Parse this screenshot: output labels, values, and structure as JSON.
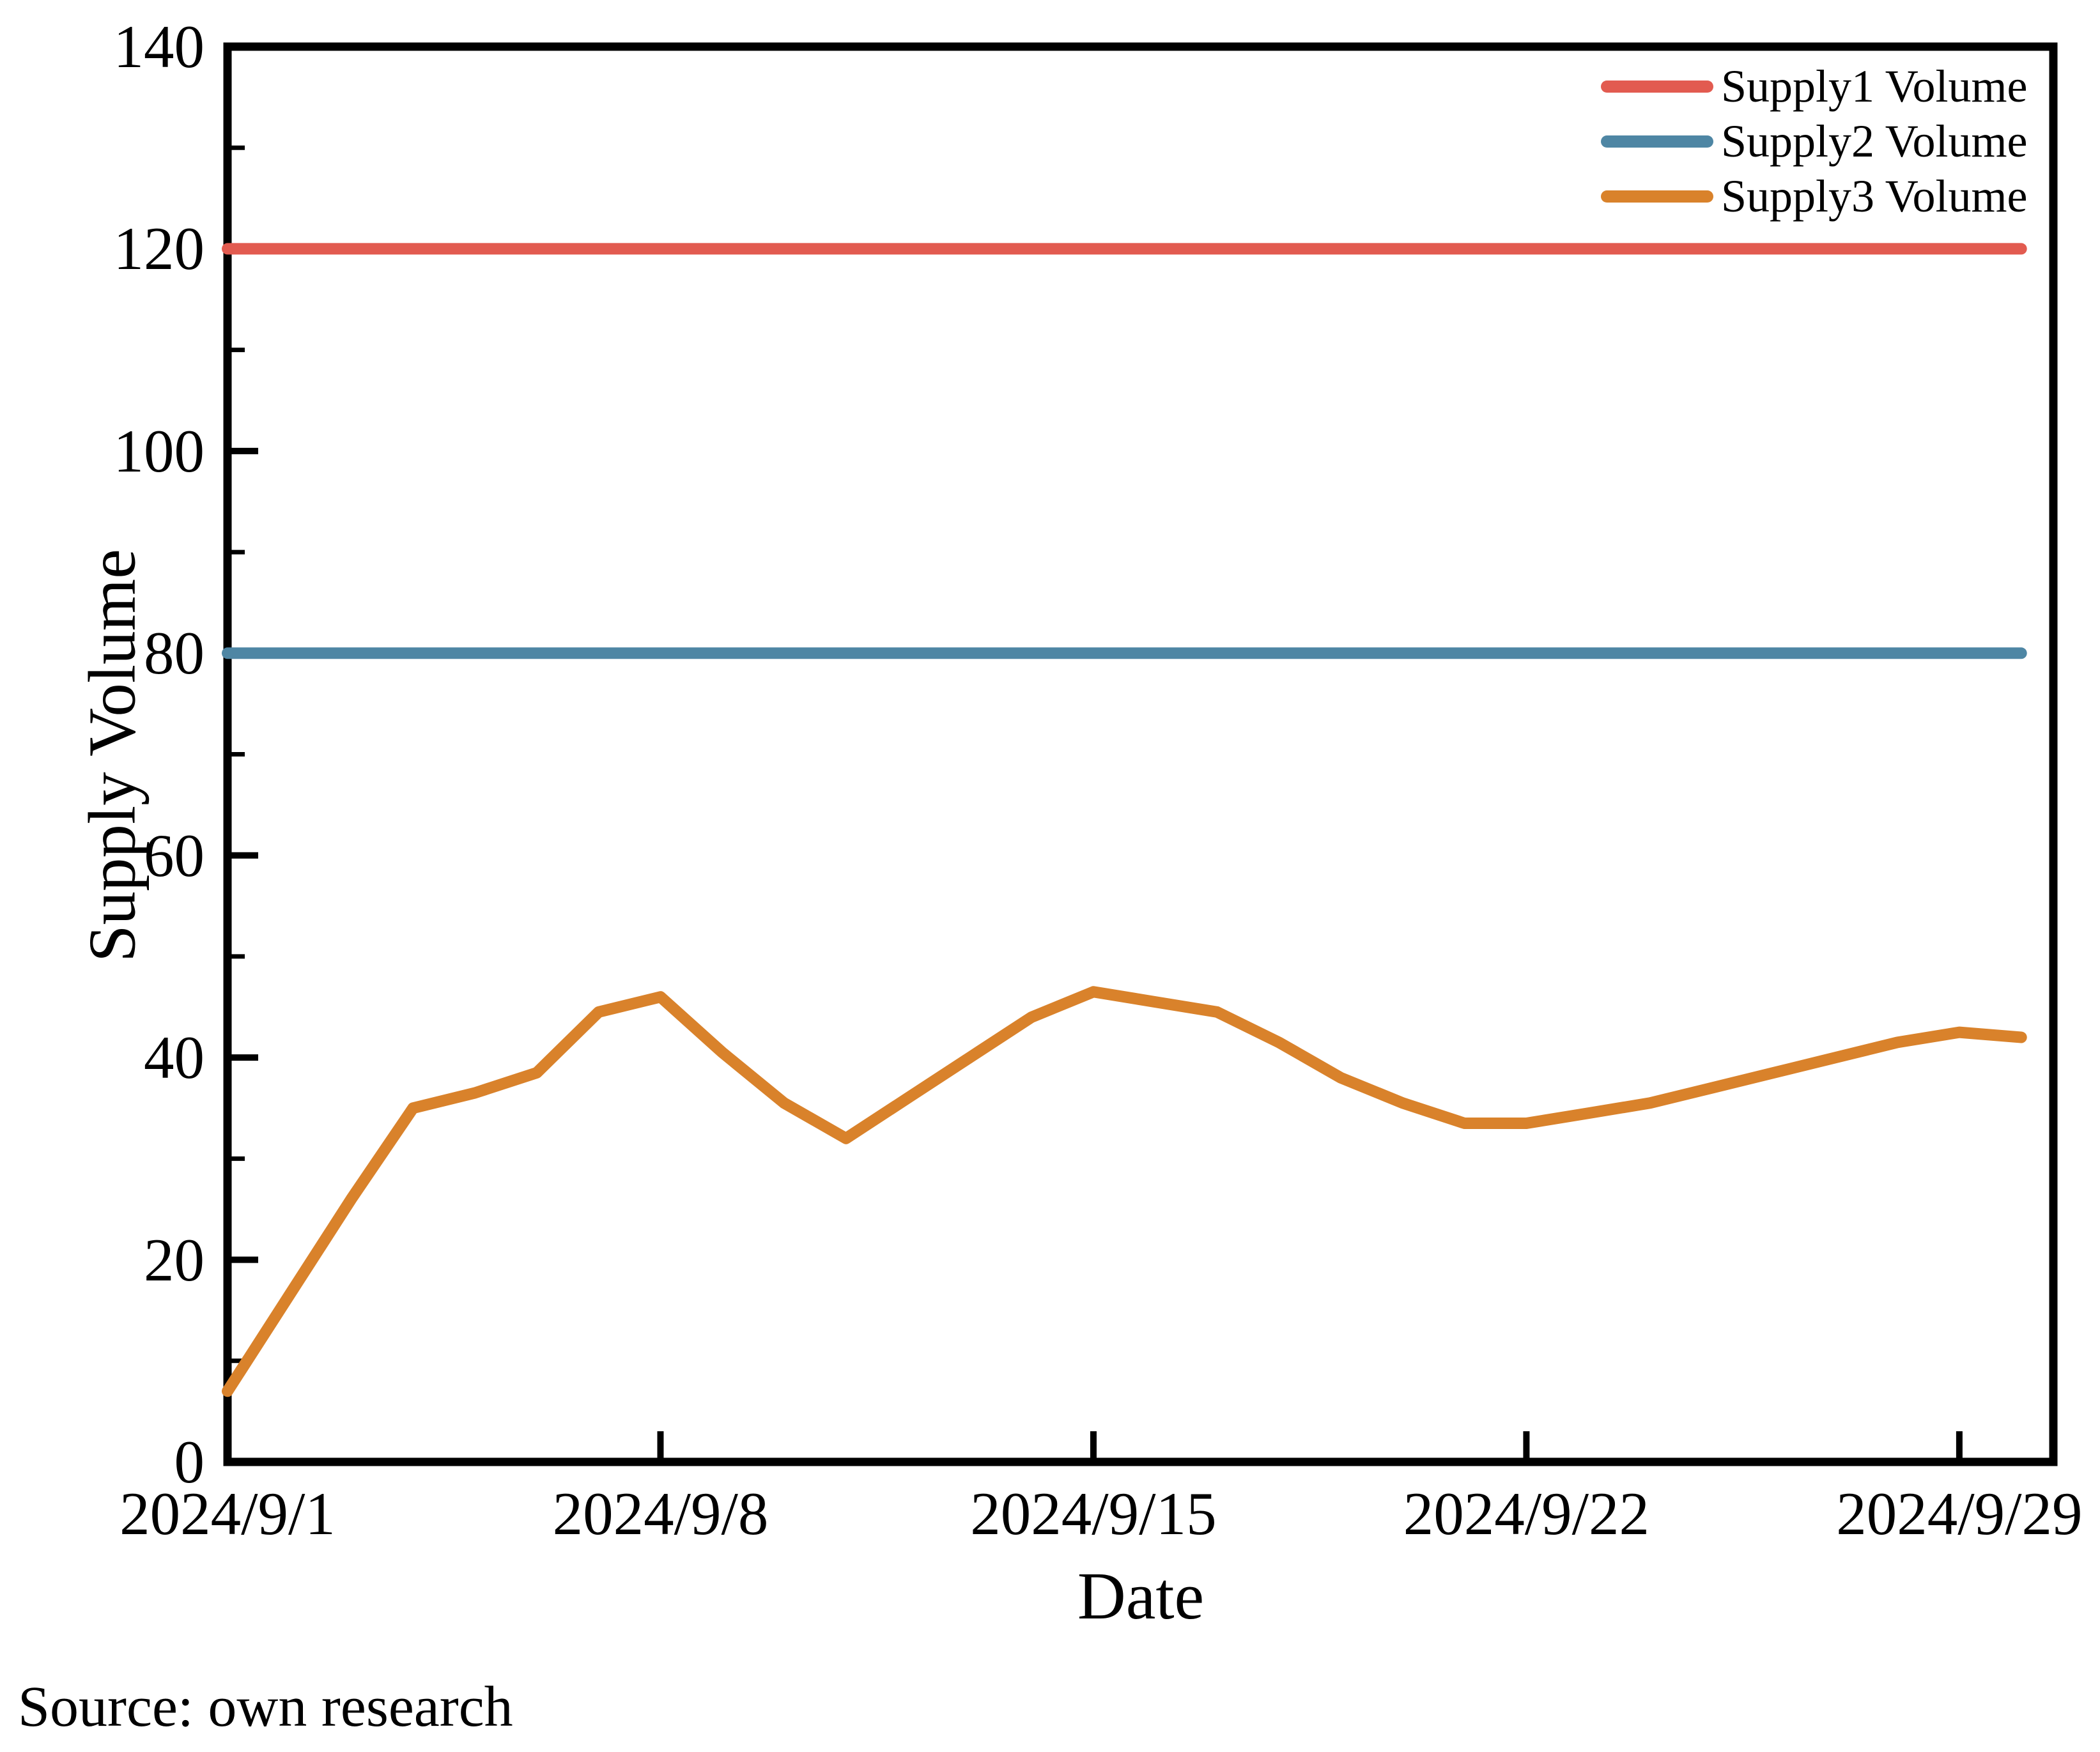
{
  "source_note": "Source: own research",
  "chart_data": {
    "type": "line",
    "title": "",
    "xlabel": "Date",
    "ylabel": "Supply Volume",
    "ylim": [
      0,
      140
    ],
    "y_major_ticks": [
      0,
      20,
      40,
      60,
      80,
      100,
      120,
      140
    ],
    "y_minor_ticks": [
      10,
      30,
      50,
      70,
      90,
      110,
      130
    ],
    "x_tick_labels": [
      "2024/9/1",
      "2024/9/8",
      "2024/9/15",
      "2024/9/22",
      "2024/9/29"
    ],
    "x_tick_day_index": [
      0,
      7,
      14,
      21,
      28
    ],
    "grid": false,
    "legend_position": "upper right",
    "axis_color": "#000000",
    "x": [
      "2024/9/1",
      "2024/9/2",
      "2024/9/3",
      "2024/9/4",
      "2024/9/5",
      "2024/9/6",
      "2024/9/7",
      "2024/9/8",
      "2024/9/9",
      "2024/9/10",
      "2024/9/11",
      "2024/9/12",
      "2024/9/13",
      "2024/9/14",
      "2024/9/15",
      "2024/9/16",
      "2024/9/17",
      "2024/9/18",
      "2024/9/19",
      "2024/9/20",
      "2024/9/21",
      "2024/9/22",
      "2024/9/23",
      "2024/9/24",
      "2024/9/25",
      "2024/9/26",
      "2024/9/27",
      "2024/9/28",
      "2024/9/29",
      "2024/9/30"
    ],
    "series": [
      {
        "name": "Supply1 Volume",
        "color": "#e25b50",
        "values": [
          120,
          120,
          120,
          120,
          120,
          120,
          120,
          120,
          120,
          120,
          120,
          120,
          120,
          120,
          120,
          120,
          120,
          120,
          120,
          120,
          120,
          120,
          120,
          120,
          120,
          120,
          120,
          120,
          120,
          120
        ]
      },
      {
        "name": "Supply2 Volume",
        "color": "#4e86a4",
        "values": [
          80,
          80,
          80,
          80,
          80,
          80,
          80,
          80,
          80,
          80,
          80,
          80,
          80,
          80,
          80,
          80,
          80,
          80,
          80,
          80,
          80,
          80,
          80,
          80,
          80,
          80,
          80,
          80,
          80,
          80
        ]
      },
      {
        "name": "Supply3 Volume",
        "color": "#d9822b",
        "values": [
          7,
          16.5,
          26,
          35,
          36.5,
          38.5,
          44.5,
          46,
          40.5,
          35.5,
          32,
          36,
          40,
          44,
          46.5,
          45.5,
          44.5,
          41.5,
          38,
          35.5,
          33.5,
          33.5,
          34.5,
          35.5,
          37,
          38.5,
          40,
          41.5,
          42.5,
          42
        ]
      }
    ]
  }
}
